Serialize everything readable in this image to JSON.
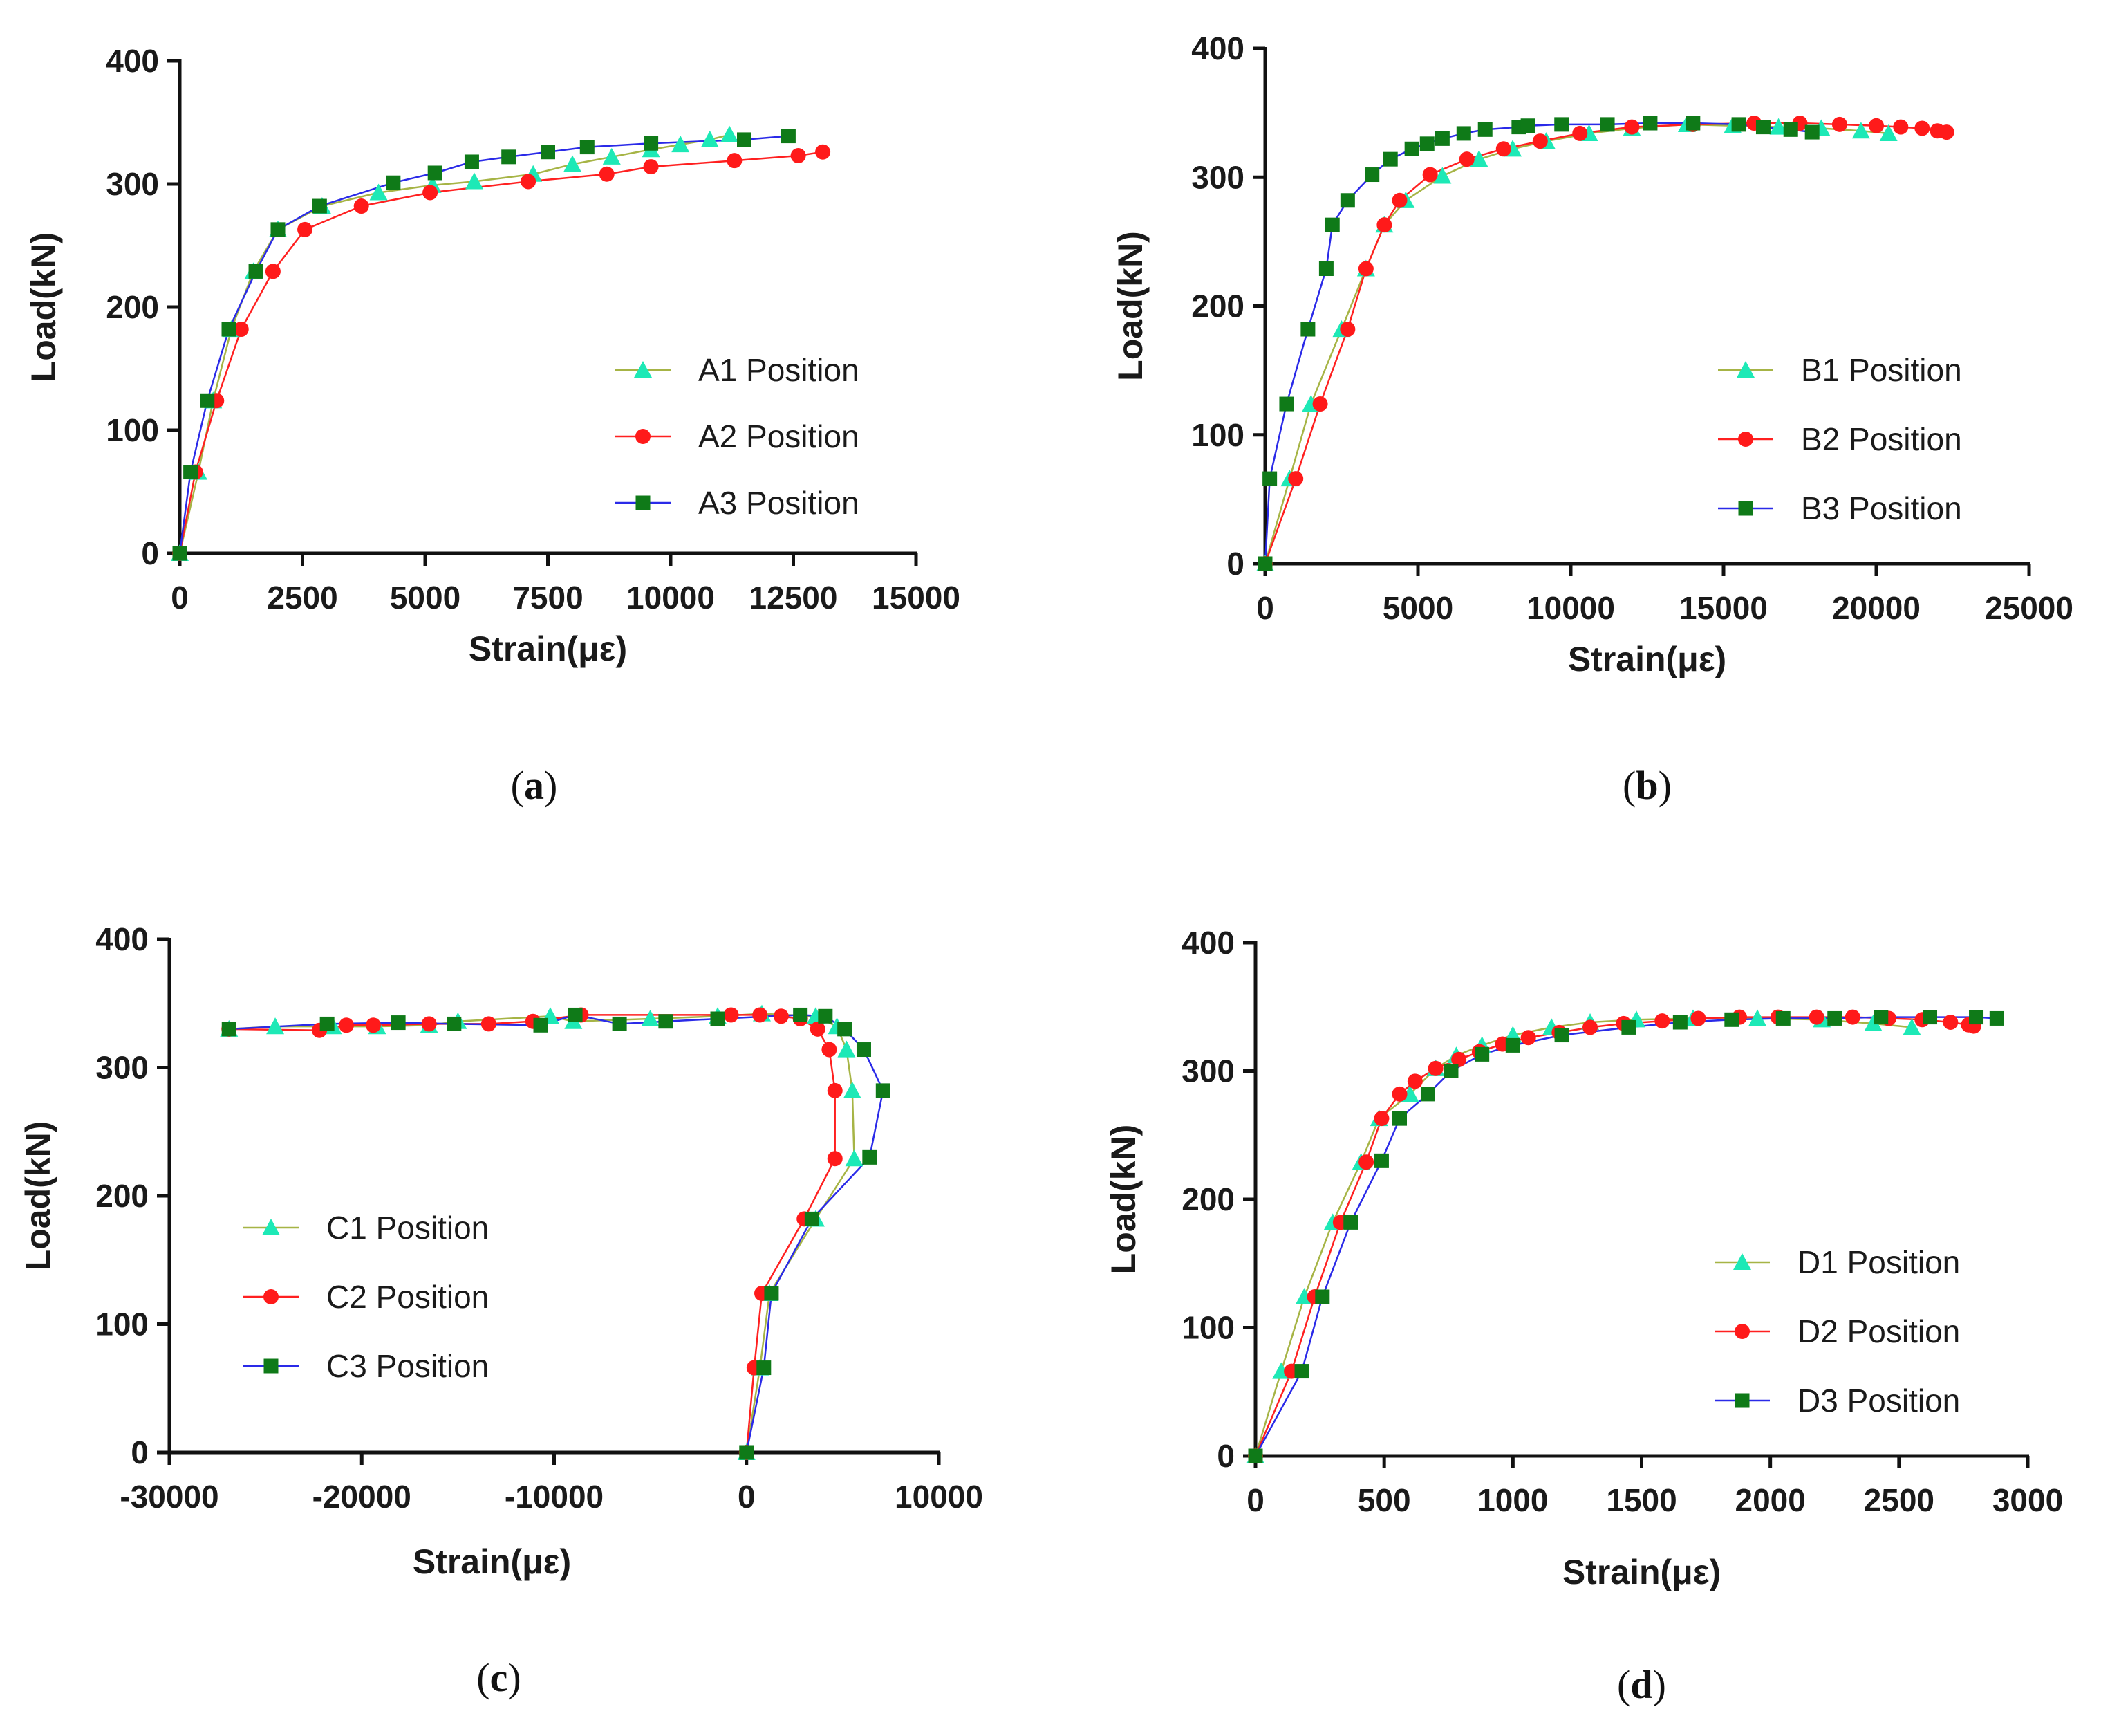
{
  "chart_data": [
    {
      "panel": "(a)",
      "panel_letter": "a",
      "type": "line",
      "xlabel": "Strain(με)",
      "ylabel": "Load(kN)",
      "xlim": [
        0,
        15000
      ],
      "ylim": [
        0,
        400
      ],
      "xticks": [
        0,
        2500,
        5000,
        7500,
        10000,
        12500,
        15000
      ],
      "yticks": [
        0,
        100,
        200,
        300,
        400
      ],
      "series": [
        {
          "name": "A1 Position",
          "marker": "triangle",
          "line_color": "#a6b445",
          "marker_color": "#1de9b6",
          "x": [
            0,
            380,
            680,
            1050,
            1500,
            2000,
            2900,
            4050,
            5150,
            6000,
            7200,
            8000,
            8800,
            9600,
            10200,
            10800,
            11200
          ],
          "y": [
            0,
            66,
            124,
            182,
            229,
            263,
            282,
            293,
            299,
            302,
            308,
            316,
            322,
            328,
            332,
            336,
            340
          ]
        },
        {
          "name": "A2 Position",
          "marker": "circle",
          "line_color": "#ff2020",
          "marker_color": "#ff1a1a",
          "x": [
            0,
            320,
            750,
            1250,
            1900,
            2550,
            3700,
            5100,
            7100,
            8700,
            9600,
            11300,
            12600,
            13100
          ],
          "y": [
            0,
            66,
            124,
            182,
            229,
            263,
            282,
            293,
            302,
            308,
            314,
            319,
            323,
            326
          ]
        },
        {
          "name": "A3 Position",
          "marker": "square",
          "line_color": "#2a2ae8",
          "marker_color": "#0f7a18",
          "x": [
            0,
            220,
            560,
            1000,
            1550,
            2000,
            2850,
            4350,
            5200,
            5950,
            6700,
            7500,
            8300,
            9600,
            11500,
            12400
          ],
          "y": [
            0,
            66,
            124,
            182,
            229,
            263,
            282,
            301,
            309,
            318,
            322,
            326,
            330,
            333,
            336,
            339
          ]
        }
      ]
    },
    {
      "panel": "(b)",
      "panel_letter": "b",
      "type": "line",
      "xlabel": "Strain(με)",
      "ylabel": "Load(kN)",
      "xlim": [
        0,
        25000
      ],
      "ylim": [
        0,
        400
      ],
      "xticks": [
        0,
        5000,
        10000,
        15000,
        20000,
        25000
      ],
      "yticks": [
        0,
        100,
        200,
        300,
        400
      ],
      "series": [
        {
          "name": "B1 Position",
          "marker": "triangle",
          "line_color": "#a6b445",
          "marker_color": "#1de9b6",
          "x": [
            0,
            800,
            1500,
            2500,
            3300,
            3900,
            4600,
            5800,
            7000,
            8100,
            9200,
            10600,
            12000,
            13800,
            15300,
            16800,
            18200,
            19500,
            20400
          ],
          "y": [
            0,
            66,
            124,
            182,
            229,
            263,
            282,
            301,
            314,
            322,
            328,
            334,
            338,
            341,
            340,
            339,
            338,
            336,
            334
          ]
        },
        {
          "name": "B2 Position",
          "marker": "circle",
          "line_color": "#ff2020",
          "marker_color": "#ff1a1a",
          "x": [
            0,
            1000,
            1800,
            2700,
            3300,
            3900,
            4400,
            5400,
            6600,
            7800,
            9000,
            10300,
            12000,
            14000,
            16000,
            17500,
            18800,
            20000,
            20800,
            21500,
            22000,
            22300
          ],
          "y": [
            0,
            66,
            124,
            182,
            229,
            263,
            282,
            302,
            314,
            322,
            328,
            334,
            339,
            341,
            342,
            342,
            341,
            340,
            339,
            338,
            336,
            335
          ]
        },
        {
          "name": "B3 Position",
          "marker": "square",
          "line_color": "#2a2ae8",
          "marker_color": "#0f7a18",
          "x": [
            0,
            150,
            700,
            1400,
            2000,
            2200,
            2700,
            3500,
            4100,
            4800,
            5300,
            5800,
            6500,
            7200,
            8300,
            8600,
            9700,
            11200,
            12600,
            14000,
            15500,
            16300,
            17200,
            17900
          ],
          "y": [
            0,
            66,
            124,
            182,
            229,
            263,
            282,
            302,
            314,
            322,
            326,
            330,
            334,
            337,
            339,
            340,
            341,
            341,
            342,
            342,
            341,
            339,
            337,
            335
          ]
        }
      ]
    },
    {
      "panel": "(c)",
      "panel_letter": "c",
      "type": "line",
      "xlabel": "Strain(με)",
      "ylabel": "Load(kN)",
      "xlim": [
        -30000,
        10000
      ],
      "ylim": [
        0,
        400
      ],
      "xticks": [
        -30000,
        -20000,
        -10000,
        0,
        10000
      ],
      "yticks": [
        0,
        100,
        200,
        300,
        400
      ],
      "series": [
        {
          "name": "C1 Position",
          "marker": "triangle",
          "line_color": "#a6b445",
          "marker_color": "#1de9b6",
          "x": [
            0,
            700,
            1200,
            3600,
            5600,
            5500,
            5200,
            4700,
            3600,
            800,
            -1500,
            -5000,
            -9000,
            -10200,
            -15000,
            -16500,
            -19200,
            -21500,
            -24500,
            -26900
          ],
          "y": [
            0,
            66,
            124,
            182,
            229,
            282,
            314,
            332,
            340,
            342,
            340,
            338,
            336,
            340,
            336,
            333,
            332,
            332,
            332,
            330
          ]
        },
        {
          "name": "C2 Position",
          "marker": "circle",
          "line_color": "#ff2020",
          "marker_color": "#ff1a1a",
          "x": [
            0,
            400,
            800,
            3000,
            4600,
            4600,
            4300,
            3700,
            2800,
            1800,
            700,
            -800,
            -8600,
            -11100,
            -13400,
            -16500,
            -19400,
            -20800,
            -22200,
            -26900
          ],
          "y": [
            0,
            66,
            124,
            182,
            229,
            282,
            314,
            330,
            338,
            340,
            341,
            341,
            341,
            336,
            334,
            334,
            333,
            333,
            329,
            330
          ]
        },
        {
          "name": "C3 Position",
          "marker": "square",
          "line_color": "#2a2ae8",
          "marker_color": "#0f7a18",
          "x": [
            0,
            900,
            1300,
            3400,
            6400,
            7100,
            6100,
            5100,
            4100,
            2800,
            -1500,
            -4200,
            -6600,
            -8900,
            -10700,
            -15200,
            -18100,
            -21800,
            -26900
          ],
          "y": [
            0,
            66,
            124,
            182,
            230,
            282,
            314,
            330,
            340,
            341,
            338,
            336,
            334,
            341,
            333,
            334,
            335,
            334,
            330
          ]
        }
      ]
    },
    {
      "panel": "(d)",
      "panel_letter": "d",
      "type": "line",
      "xlabel": "Strain(με)",
      "ylabel": "Load(kN)",
      "xlim": [
        0,
        3000
      ],
      "ylim": [
        0,
        400
      ],
      "xticks": [
        0,
        500,
        1000,
        1500,
        2000,
        2500,
        3000
      ],
      "yticks": [
        0,
        100,
        200,
        300,
        400
      ],
      "series": [
        {
          "name": "D1 Position",
          "marker": "triangle",
          "line_color": "#a6b445",
          "marker_color": "#1de9b6",
          "x": [
            0,
            100,
            190,
            300,
            410,
            480,
            600,
            700,
            780,
            880,
            1000,
            1150,
            1300,
            1480,
            1700,
            1950,
            2200,
            2400,
            2550
          ],
          "y": [
            0,
            66,
            124,
            182,
            229,
            263,
            282,
            302,
            312,
            320,
            328,
            334,
            338,
            340,
            341,
            341,
            340,
            337,
            334
          ]
        },
        {
          "name": "D2 Position",
          "marker": "circle",
          "line_color": "#ff2020",
          "marker_color": "#ff1a1a",
          "x": [
            0,
            140,
            230,
            330,
            430,
            490,
            560,
            620,
            700,
            790,
            870,
            960,
            1060,
            1180,
            1300,
            1430,
            1580,
            1720,
            1880,
            2030,
            2180,
            2320,
            2460,
            2590,
            2700,
            2770,
            2790
          ],
          "y": [
            0,
            66,
            124,
            182,
            229,
            263,
            282,
            292,
            302,
            309,
            315,
            321,
            326,
            330,
            334,
            337,
            339,
            341,
            342,
            342,
            342,
            342,
            341,
            340,
            338,
            336,
            335
          ]
        },
        {
          "name": "D3 Position",
          "marker": "square",
          "line_color": "#2a2ae8",
          "marker_color": "#0f7a18",
          "x": [
            0,
            180,
            260,
            370,
            490,
            560,
            670,
            760,
            880,
            1000,
            1190,
            1450,
            1650,
            1850,
            2050,
            2250,
            2430,
            2620,
            2800,
            2880
          ],
          "y": [
            0,
            66,
            124,
            182,
            230,
            263,
            282,
            300,
            313,
            320,
            328,
            334,
            338,
            340,
            341,
            341,
            342,
            342,
            342,
            341
          ]
        }
      ]
    }
  ]
}
